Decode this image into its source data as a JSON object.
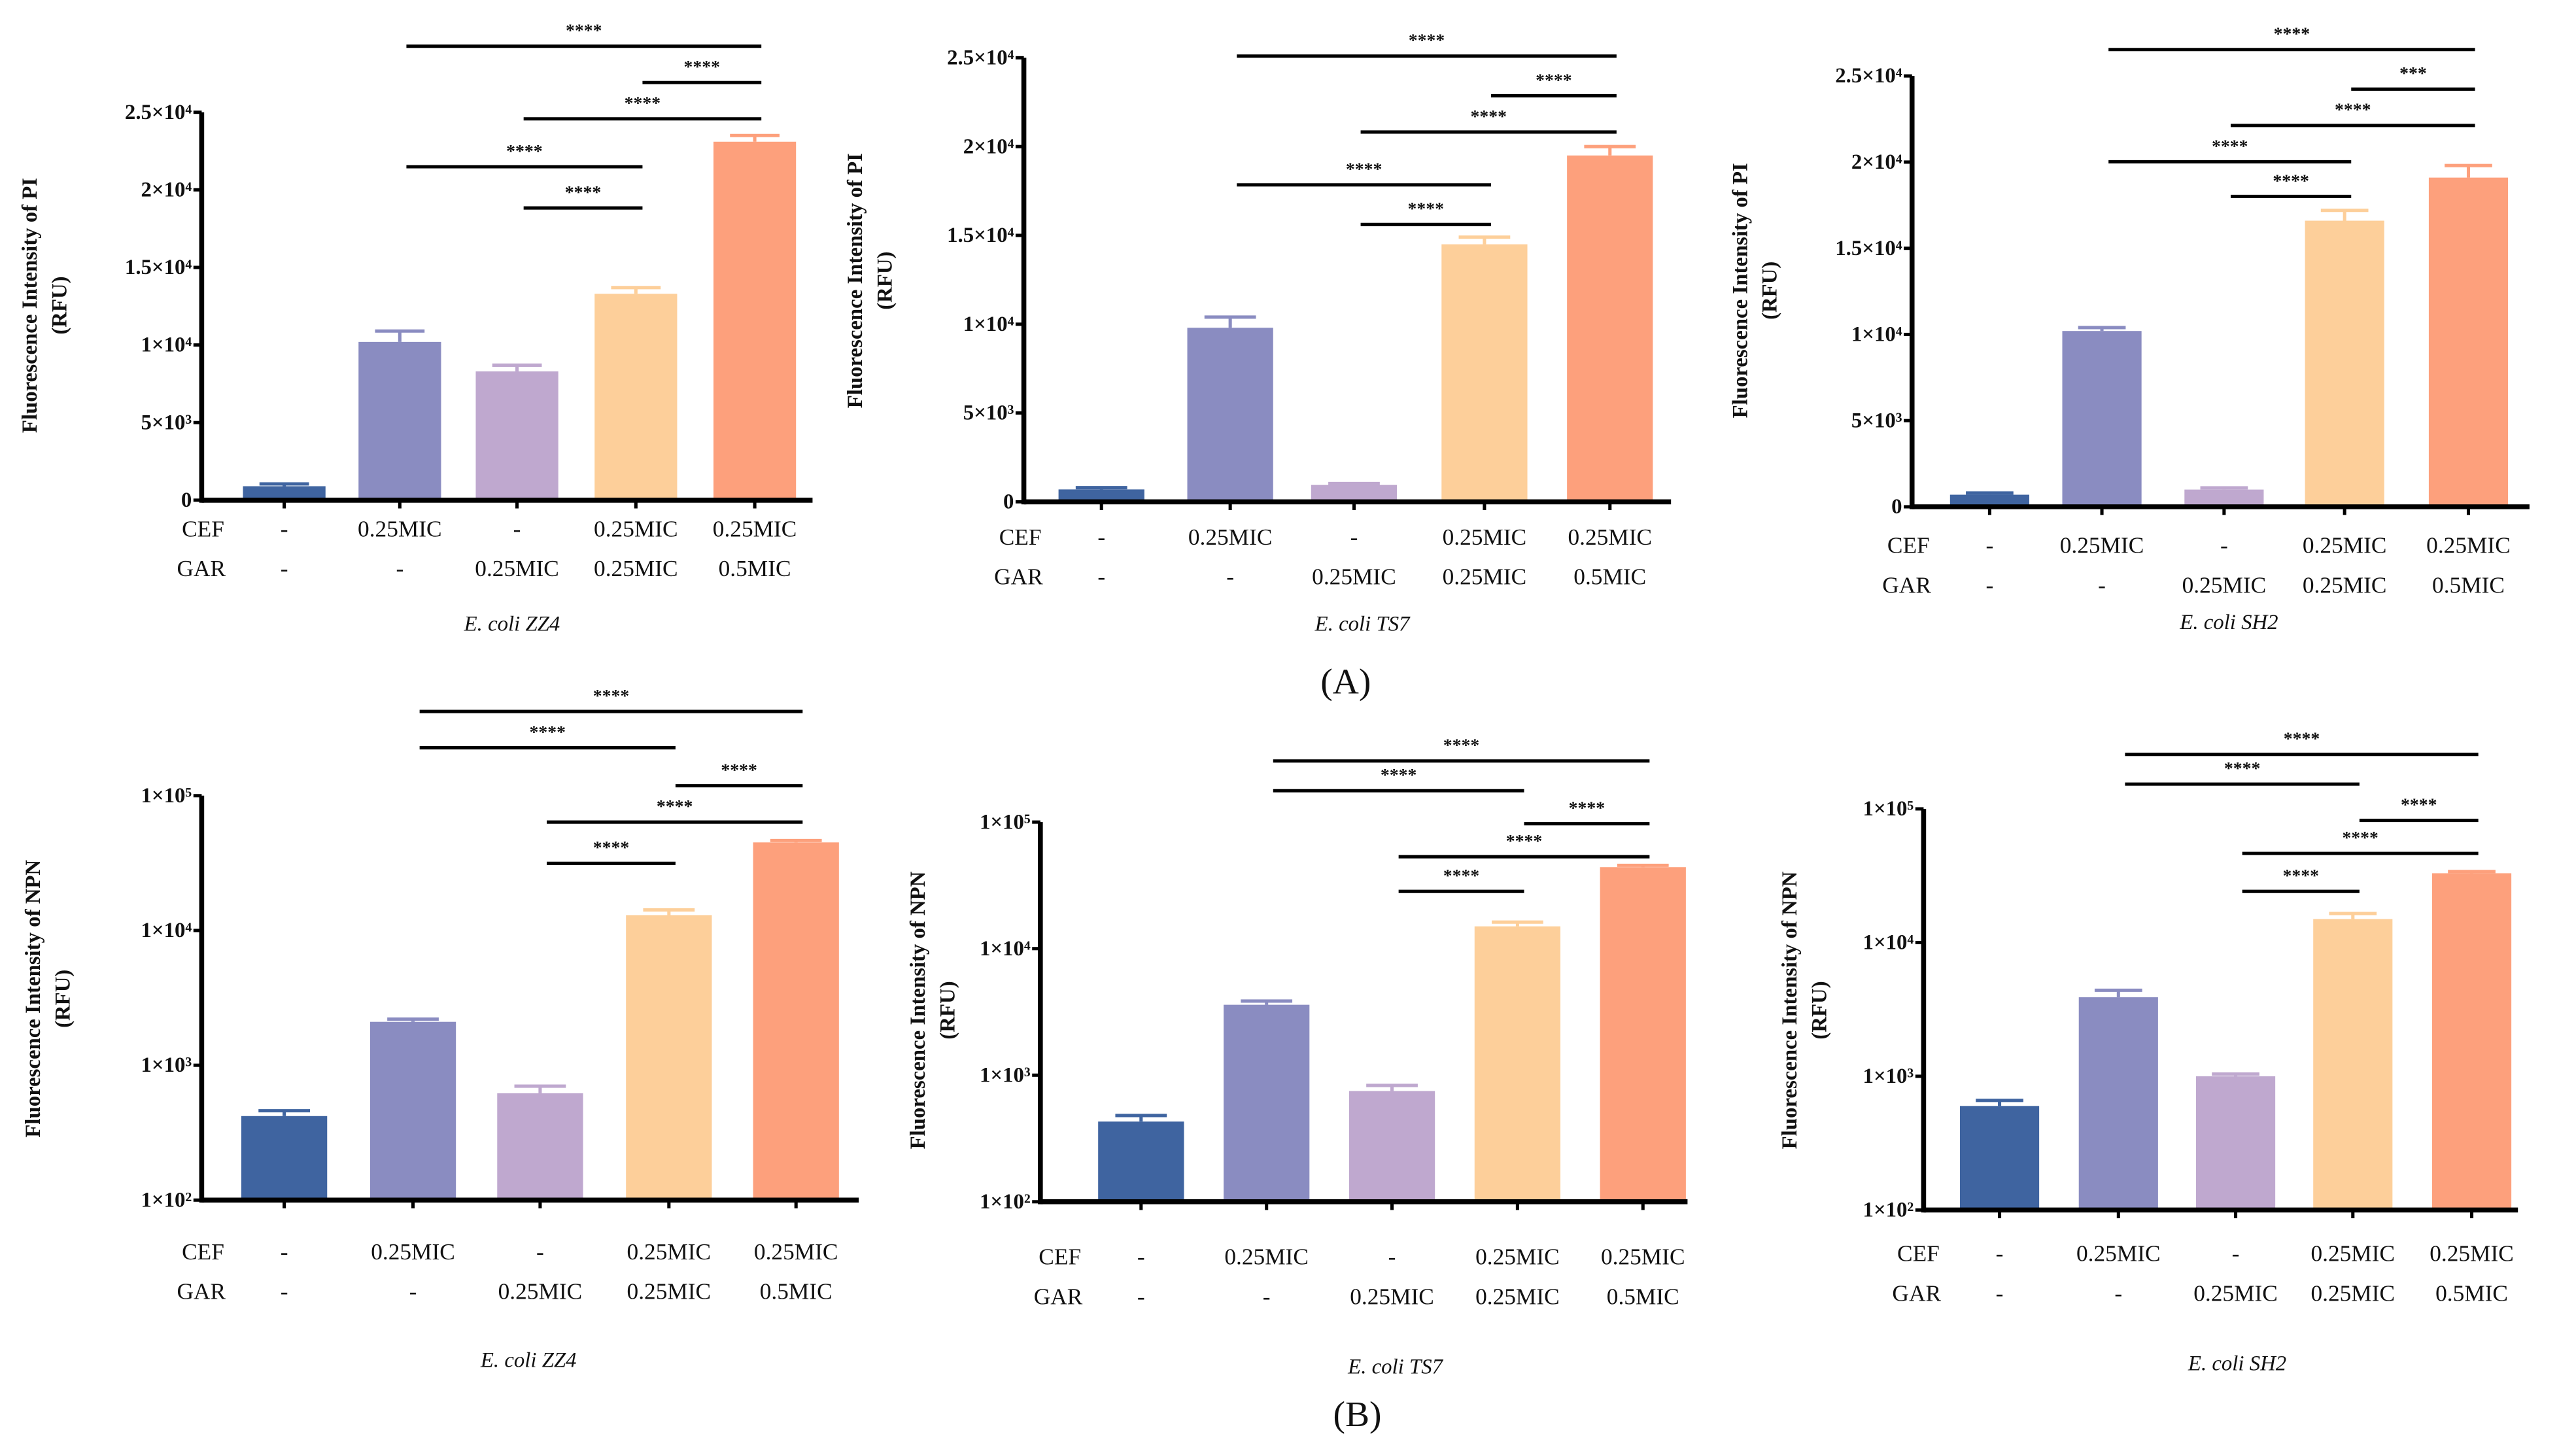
{
  "panel_labels": [
    "(A)",
    "(B)"
  ],
  "row_labels": [
    "CEF",
    "GAR"
  ],
  "colors": [
    "#3f64a0",
    "#8a8cc1",
    "#bfa8cf",
    "#fdcf9a",
    "#fda07c"
  ],
  "chart_data": [
    {
      "type": "bar",
      "panel": "(A)",
      "title": "E. coli ZZ4",
      "ylabel": [
        "Fluorescence Intensity   of PI",
        "(RFU)"
      ],
      "yscale": "linear",
      "ylim": [
        0,
        25000
      ],
      "yticks": [
        0,
        5000,
        10000,
        15000,
        20000,
        25000
      ],
      "ytick_labels": [
        "0",
        "5×10³",
        "1×10⁴",
        "1.5×10⁴",
        "2×10⁴",
        "2.5×10⁴"
      ],
      "cef": [
        "-",
        "0.25MIC",
        "-",
        "0.25MIC",
        "0.25MIC"
      ],
      "gar": [
        "-",
        "-",
        "0.25MIC",
        "0.25MIC",
        "0.5MIC"
      ],
      "values": [
        900,
        10200,
        8300,
        13300,
        23100
      ],
      "errors": [
        150,
        700,
        400,
        400,
        400
      ],
      "significance": [
        {
          "from": 2,
          "to": 5,
          "label": "****"
        },
        {
          "from": 4,
          "to": 5,
          "label": "****"
        },
        {
          "from": 3,
          "to": 5,
          "label": "****"
        },
        {
          "from": 2,
          "to": 4,
          "label": "****"
        },
        {
          "from": 3,
          "to": 4,
          "label": "****"
        }
      ]
    },
    {
      "type": "bar",
      "panel": "(A)",
      "title": "E. coli TS7",
      "ylabel": [
        "Fluorescence Intensity   of PI",
        "(RFU)"
      ],
      "yscale": "linear",
      "ylim": [
        0,
        25000
      ],
      "yticks": [
        0,
        5000,
        10000,
        15000,
        20000,
        25000
      ],
      "ytick_labels": [
        "0",
        "5×10³",
        "1×10⁴",
        "1.5×10⁴",
        "2×10⁴",
        "2.5×10⁴"
      ],
      "cef": [
        "-",
        "0.25MIC",
        "-",
        "0.25MIC",
        "0.25MIC"
      ],
      "gar": [
        "-",
        "-",
        "0.25MIC",
        "0.25MIC",
        "0.5MIC"
      ],
      "values": [
        700,
        9800,
        950,
        14500,
        19500
      ],
      "errors": [
        100,
        600,
        80,
        400,
        500
      ],
      "significance": [
        {
          "from": 2,
          "to": 5,
          "label": "****"
        },
        {
          "from": 4,
          "to": 5,
          "label": "****"
        },
        {
          "from": 3,
          "to": 5,
          "label": "****"
        },
        {
          "from": 2,
          "to": 4,
          "label": "****"
        },
        {
          "from": 3,
          "to": 4,
          "label": "****"
        }
      ]
    },
    {
      "type": "bar",
      "panel": "(A)",
      "title": "E. coli SH2",
      "ylabel": [
        "Fluorescence Intensity   of PI",
        "(RFU)"
      ],
      "yscale": "linear",
      "ylim": [
        0,
        25000
      ],
      "yticks": [
        0,
        5000,
        10000,
        15000,
        20000,
        25000
      ],
      "ytick_labels": [
        "0",
        "5×10³",
        "1×10⁴",
        "1.5×10⁴",
        "2×10⁴",
        "2.5×10⁴"
      ],
      "cef": [
        "-",
        "0.25MIC",
        "-",
        "0.25MIC",
        "0.25MIC"
      ],
      "gar": [
        "-",
        "-",
        "0.25MIC",
        "0.25MIC",
        "0.5MIC"
      ],
      "values": [
        700,
        10200,
        1000,
        16600,
        19100
      ],
      "errors": [
        100,
        200,
        100,
        600,
        700
      ],
      "significance": [
        {
          "from": 2,
          "to": 5,
          "label": "****"
        },
        {
          "from": 4,
          "to": 5,
          "label": "***"
        },
        {
          "from": 3,
          "to": 5,
          "label": "****"
        },
        {
          "from": 2,
          "to": 4,
          "label": "****"
        },
        {
          "from": 3,
          "to": 4,
          "label": "****"
        }
      ]
    },
    {
      "type": "bar",
      "panel": "(B)",
      "title": "E. coli ZZ4",
      "ylabel": [
        "Fluorescence Intensity   of NPN",
        "(RFU)"
      ],
      "yscale": "log",
      "ylim": [
        100,
        100000
      ],
      "yticks": [
        100,
        1000,
        10000,
        100000
      ],
      "ytick_labels": [
        "1×10²",
        "1×10³",
        "1×10⁴",
        "1×10⁵"
      ],
      "cef": [
        "-",
        "0.25MIC",
        "-",
        "0.25MIC",
        "0.25MIC"
      ],
      "gar": [
        "-",
        "-",
        "0.25MIC",
        "0.25MIC",
        "0.5MIC"
      ],
      "values": [
        420,
        2100,
        620,
        13000,
        45000
      ],
      "errors": [
        40,
        100,
        80,
        1200,
        1500
      ],
      "significance": [
        {
          "from": 2,
          "to": 5,
          "label": "****"
        },
        {
          "from": 2,
          "to": 4,
          "label": "****"
        },
        {
          "from": 4,
          "to": 5,
          "label": "****"
        },
        {
          "from": 3,
          "to": 5,
          "label": "****"
        },
        {
          "from": 3,
          "to": 4,
          "label": "****"
        }
      ]
    },
    {
      "type": "bar",
      "panel": "(B)",
      "title": "E. coli TS7",
      "ylabel": [
        "Fluorescence Intensity   of NPN",
        "(RFU)"
      ],
      "yscale": "log",
      "ylim": [
        100,
        100000
      ],
      "yticks": [
        100,
        1000,
        10000,
        100000
      ],
      "ytick_labels": [
        "1×10²",
        "1×10³",
        "1×10⁴",
        "1×10⁵"
      ],
      "cef": [
        "-",
        "0.25MIC",
        "-",
        "0.25MIC",
        "0.25MIC"
      ],
      "gar": [
        "-",
        "-",
        "0.25MIC",
        "0.25MIC",
        "0.5MIC"
      ],
      "values": [
        430,
        3600,
        750,
        15000,
        44000
      ],
      "errors": [
        50,
        250,
        80,
        1200,
        1500
      ],
      "significance": [
        {
          "from": 2,
          "to": 5,
          "label": "****"
        },
        {
          "from": 2,
          "to": 4,
          "label": "****"
        },
        {
          "from": 4,
          "to": 5,
          "label": "****"
        },
        {
          "from": 3,
          "to": 5,
          "label": "****"
        },
        {
          "from": 3,
          "to": 4,
          "label": "****"
        }
      ]
    },
    {
      "type": "bar",
      "panel": "(B)",
      "title": "E. coli SH2",
      "ylabel": [
        "Fluorescence Intensity   of NPN",
        "(RFU)"
      ],
      "yscale": "log",
      "ylim": [
        100,
        100000
      ],
      "yticks": [
        100,
        1000,
        10000,
        100000
      ],
      "ytick_labels": [
        "1×10²",
        "1×10³",
        "1×10⁴",
        "1×10⁵"
      ],
      "cef": [
        "-",
        "0.25MIC",
        "-",
        "0.25MIC",
        "0.25MIC"
      ],
      "gar": [
        "-",
        "-",
        "0.25MIC",
        "0.25MIC",
        "0.5MIC"
      ],
      "values": [
        600,
        3900,
        1000,
        15000,
        33000
      ],
      "errors": [
        60,
        500,
        40,
        1500,
        1000
      ],
      "significance": [
        {
          "from": 2,
          "to": 5,
          "label": "****"
        },
        {
          "from": 2,
          "to": 4,
          "label": "****"
        },
        {
          "from": 4,
          "to": 5,
          "label": "****"
        },
        {
          "from": 3,
          "to": 5,
          "label": "****"
        },
        {
          "from": 3,
          "to": 4,
          "label": "****"
        }
      ]
    }
  ]
}
